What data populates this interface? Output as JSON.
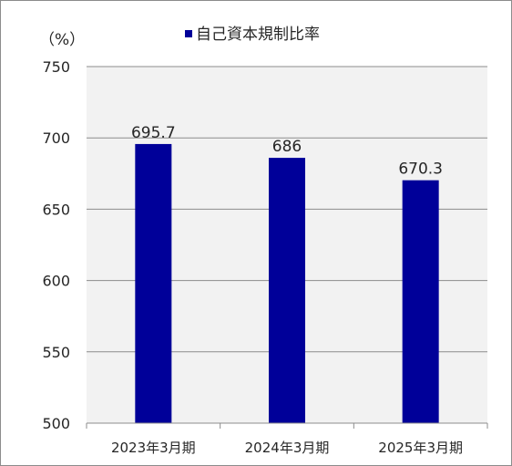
{
  "chart_data": {
    "type": "bar",
    "ylabel": "（%）",
    "categories": [
      "2023年3月期",
      "2024年3月期",
      "2025年3月期"
    ],
    "series": [
      {
        "name": "自己資本規制比率",
        "values": [
          695.7,
          686,
          670.3
        ],
        "color": "#000099"
      }
    ],
    "data_labels": [
      "695.7",
      "686",
      "670.3"
    ],
    "ylim": [
      500,
      750
    ],
    "yticks": [
      500,
      550,
      600,
      650,
      700,
      750
    ],
    "grid": true,
    "plot_background": "#f2f2f2",
    "legend_position": "top"
  }
}
